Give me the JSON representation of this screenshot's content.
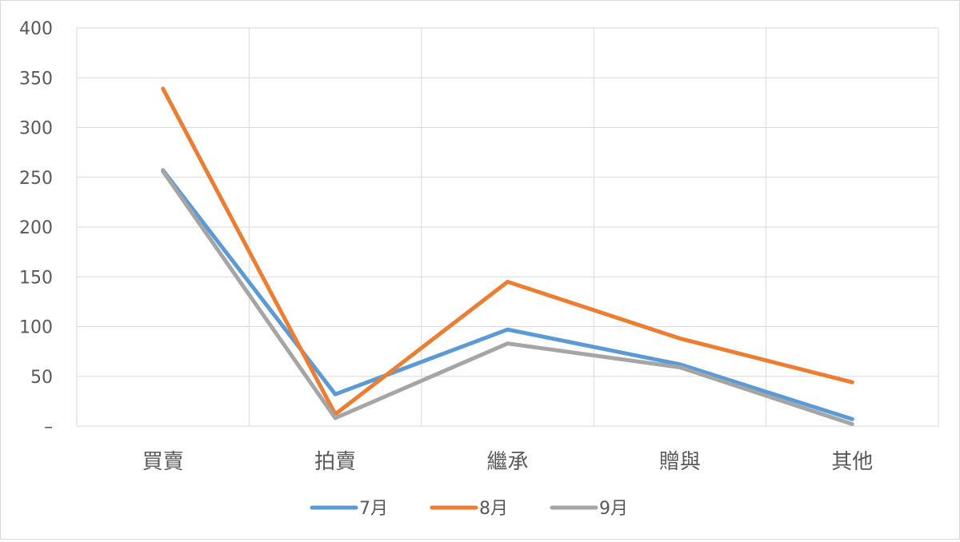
{
  "chart_data": {
    "type": "line",
    "categories": [
      "買賣",
      "拍賣",
      "繼承",
      "贈與",
      "其他"
    ],
    "series": [
      {
        "name": "7月",
        "values": [
          257,
          32,
          97,
          62,
          7
        ],
        "color": "#5b9bd5"
      },
      {
        "name": "8月",
        "values": [
          339,
          12,
          145,
          88,
          44
        ],
        "color": "#ed7d31"
      },
      {
        "name": "9月",
        "values": [
          256,
          8,
          83,
          59,
          2
        ],
        "color": "#a5a5a5"
      }
    ],
    "y_ticks": [
      "–",
      "50",
      "100",
      "150",
      "200",
      "250",
      "300",
      "350",
      "400"
    ],
    "ylim": [
      0,
      400
    ],
    "grid": true,
    "legend_position": "bottom"
  }
}
